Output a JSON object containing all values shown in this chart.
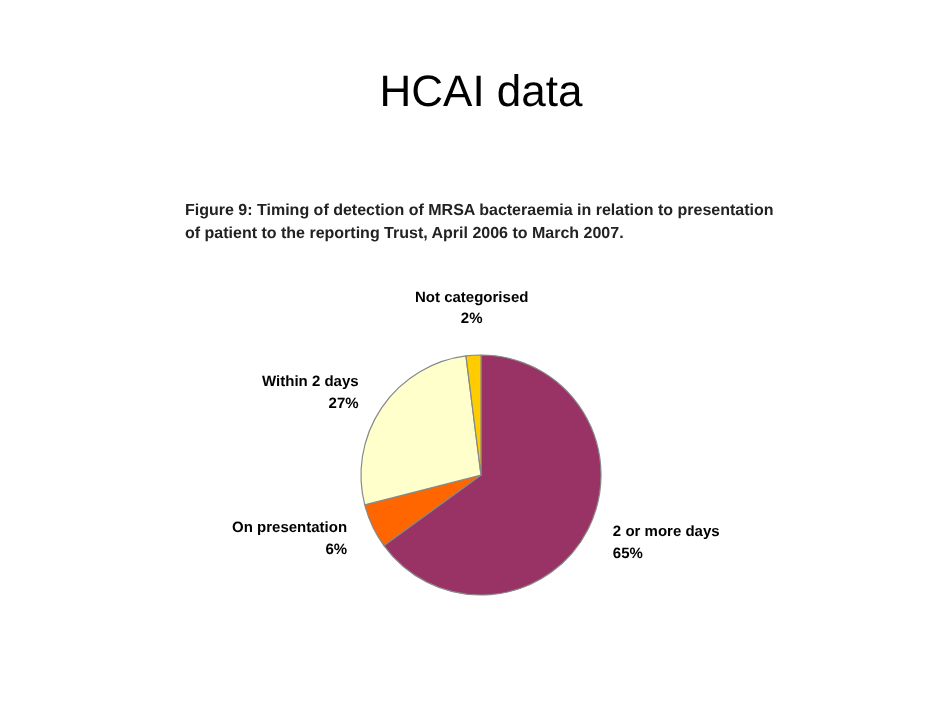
{
  "chart_data": {
    "type": "pie",
    "title": "HCAI data",
    "subtitle": "Figure 9: Timing of detection of MRSA bacteraemia in relation to presentation\nof patient to the reporting Trust, April 2006 to March 2007.",
    "categories": [
      "2 or more days",
      "On presentation",
      "Within 2 days",
      "Not categorised"
    ],
    "values": [
      65,
      6,
      27,
      2
    ],
    "value_labels": [
      "65%",
      "6%",
      "27%",
      "2%"
    ],
    "colors": [
      "#993366",
      "#ff6600",
      "#ffffcc",
      "#ffcc00"
    ]
  }
}
